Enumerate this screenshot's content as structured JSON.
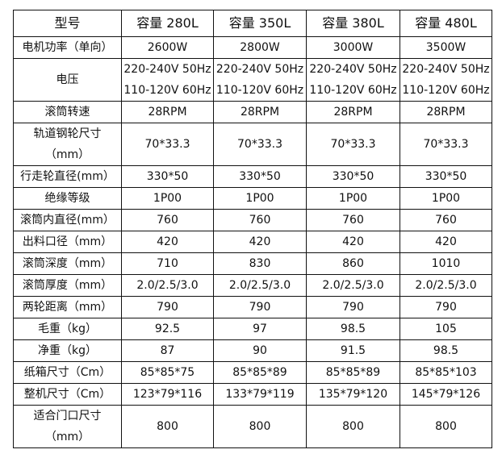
{
  "header": {
    "label": "型号",
    "models": [
      "容量 280L",
      "容量 350L",
      "容量 380L",
      "容量 480L"
    ]
  },
  "rows": [
    {
      "label": [
        "电机功率（单向）"
      ],
      "values": [
        [
          "2600W"
        ],
        [
          "2800W"
        ],
        [
          "3000W"
        ],
        [
          "3500W"
        ]
      ]
    },
    {
      "label": [
        "电压"
      ],
      "values": [
        [
          "220-240V 50Hz",
          "110-120V 60Hz"
        ],
        [
          "220-240V 50Hz",
          "110-120V 60Hz"
        ],
        [
          "220-240V 50Hz",
          "110-120V 60Hz"
        ],
        [
          "220-240V 50Hz",
          "110-120V 60Hz"
        ]
      ]
    },
    {
      "label": [
        "滚筒转速"
      ],
      "values": [
        [
          "28RPM"
        ],
        [
          "28RPM"
        ],
        [
          "28RPM"
        ],
        [
          "28RPM"
        ]
      ]
    },
    {
      "label": [
        "轨道钢轮尺寸",
        "（mm）"
      ],
      "values": [
        [
          "70*33.3"
        ],
        [
          "70*33.3"
        ],
        [
          "70*33.3"
        ],
        [
          "70*33.3"
        ]
      ]
    },
    {
      "label": [
        "行走轮直径(mm）"
      ],
      "values": [
        [
          "330*50"
        ],
        [
          "330*50"
        ],
        [
          "330*50"
        ],
        [
          "330*50"
        ]
      ]
    },
    {
      "label": [
        "绝缘等级"
      ],
      "values": [
        [
          "1P00"
        ],
        [
          "1P00"
        ],
        [
          "1P00"
        ],
        [
          "1P00"
        ]
      ]
    },
    {
      "label": [
        "滚筒内直径(mm）"
      ],
      "values": [
        [
          "760"
        ],
        [
          "760"
        ],
        [
          "760"
        ],
        [
          "760"
        ]
      ]
    },
    {
      "label": [
        "出料口径（mm）"
      ],
      "values": [
        [
          "420"
        ],
        [
          "420"
        ],
        [
          "420"
        ],
        [
          "420"
        ]
      ]
    },
    {
      "label": [
        "滚筒深度（mm）"
      ],
      "values": [
        [
          "710"
        ],
        [
          "830"
        ],
        [
          "860"
        ],
        [
          "1010"
        ]
      ]
    },
    {
      "label": [
        "滚筒厚度（mm）"
      ],
      "values": [
        [
          "2.0/2.5/3.0"
        ],
        [
          "2.0/2.5/3.0"
        ],
        [
          "2.0/2.5/3.0"
        ],
        [
          "2.0/2.5/3.0"
        ]
      ]
    },
    {
      "label": [
        "两轮距离（mm）"
      ],
      "values": [
        [
          "790"
        ],
        [
          "790"
        ],
        [
          "790"
        ],
        [
          "790"
        ]
      ]
    },
    {
      "label": [
        "毛重（kg）"
      ],
      "values": [
        [
          "92.5"
        ],
        [
          "97"
        ],
        [
          "98.5"
        ],
        [
          "105"
        ]
      ]
    },
    {
      "label": [
        "净重（kg）"
      ],
      "values": [
        [
          "87"
        ],
        [
          "90"
        ],
        [
          "91.5"
        ],
        [
          "98.5"
        ]
      ]
    },
    {
      "label": [
        "纸箱尺寸（Cm）"
      ],
      "values": [
        [
          "85*85*75"
        ],
        [
          "85*85*89"
        ],
        [
          "85*85*89"
        ],
        [
          "85*85*103"
        ]
      ]
    },
    {
      "label": [
        "整机尺寸（Cm）"
      ],
      "values": [
        [
          "123*79*116"
        ],
        [
          "133*79*119"
        ],
        [
          "135*79*120"
        ],
        [
          "145*79*126"
        ]
      ]
    },
    {
      "label": [
        "适合门口尺寸",
        "（mm）"
      ],
      "values": [
        [
          "800"
        ],
        [
          "800"
        ],
        [
          "800"
        ],
        [
          "800"
        ]
      ]
    }
  ]
}
